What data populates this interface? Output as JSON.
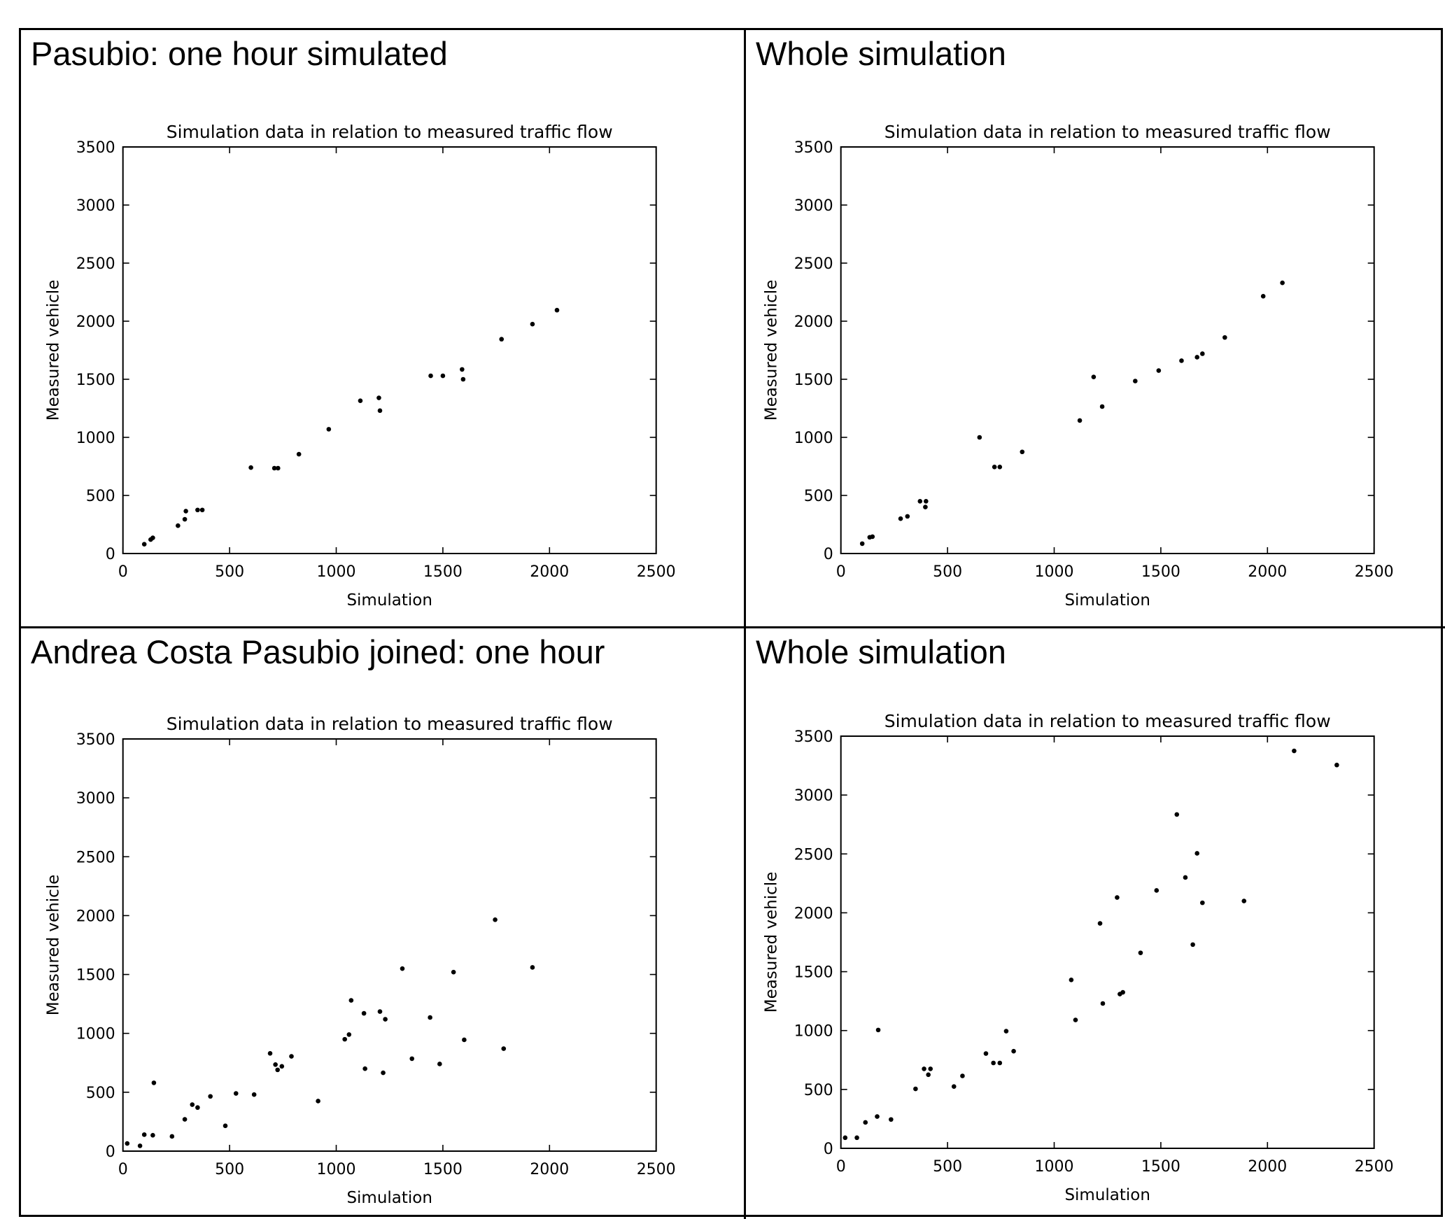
{
  "panels": [
    {
      "heading": "Pasubio: one hour simulated",
      "chart_index": 0
    },
    {
      "heading": "Whole simulation",
      "chart_index": 1
    },
    {
      "heading": "Andrea Costa Pasubio joined: one hour",
      "chart_index": 2
    },
    {
      "heading": "Whole simulation",
      "chart_index": 3
    }
  ],
  "chart_data": [
    {
      "type": "scatter",
      "title": "Simulation data in relation to measured traffic flow",
      "xlabel": "Simulation",
      "ylabel": "Measured vehicle",
      "xlim": [
        0,
        2500
      ],
      "ylim": [
        0,
        3500
      ],
      "xticks": [
        0,
        500,
        1000,
        1500,
        2000,
        2500
      ],
      "yticks": [
        0,
        500,
        1000,
        1500,
        2000,
        2500,
        3000,
        3500
      ],
      "grid": false,
      "marker_color": "#000000",
      "points": [
        [
          100,
          80
        ],
        [
          130,
          120
        ],
        [
          140,
          135
        ],
        [
          258,
          240
        ],
        [
          290,
          295
        ],
        [
          295,
          365
        ],
        [
          350,
          375
        ],
        [
          372,
          375
        ],
        [
          600,
          740
        ],
        [
          710,
          735
        ],
        [
          727,
          735
        ],
        [
          825,
          855
        ],
        [
          965,
          1070
        ],
        [
          1113,
          1315
        ],
        [
          1200,
          1340
        ],
        [
          1205,
          1230
        ],
        [
          1443,
          1530
        ],
        [
          1500,
          1530
        ],
        [
          1590,
          1585
        ],
        [
          1595,
          1500
        ],
        [
          1775,
          1845
        ],
        [
          1920,
          1975
        ],
        [
          2035,
          2095
        ]
      ]
    },
    {
      "type": "scatter",
      "title": "Simulation data in relation to measured traffic flow",
      "xlabel": "Simulation",
      "ylabel": "Measured vehicle",
      "xlim": [
        0,
        2500
      ],
      "ylim": [
        0,
        3500
      ],
      "xticks": [
        0,
        500,
        1000,
        1500,
        2000,
        2500
      ],
      "yticks": [
        0,
        500,
        1000,
        1500,
        2000,
        2500,
        3000,
        3500
      ],
      "grid": false,
      "marker_color": "#000000",
      "points": [
        [
          100,
          85
        ],
        [
          135,
          140
        ],
        [
          148,
          145
        ],
        [
          280,
          300
        ],
        [
          312,
          320
        ],
        [
          371,
          450
        ],
        [
          396,
          400
        ],
        [
          399,
          450
        ],
        [
          650,
          1000
        ],
        [
          720,
          745
        ],
        [
          745,
          745
        ],
        [
          850,
          875
        ],
        [
          1120,
          1145
        ],
        [
          1185,
          1520
        ],
        [
          1225,
          1265
        ],
        [
          1380,
          1485
        ],
        [
          1490,
          1575
        ],
        [
          1597,
          1660
        ],
        [
          1670,
          1690
        ],
        [
          1695,
          1720
        ],
        [
          1800,
          1860
        ],
        [
          1980,
          2215
        ],
        [
          2070,
          2330
        ]
      ]
    },
    {
      "type": "scatter",
      "title": "Simulation data in relation to measured traffic flow",
      "xlabel": "Simulation",
      "ylabel": "Measured vehicle",
      "xlim": [
        0,
        2500
      ],
      "ylim": [
        0,
        3500
      ],
      "xticks": [
        0,
        500,
        1000,
        1500,
        2000,
        2500
      ],
      "yticks": [
        0,
        500,
        1000,
        1500,
        2000,
        2500,
        3000,
        3500
      ],
      "grid": false,
      "marker_color": "#000000",
      "points": [
        [
          20,
          65
        ],
        [
          80,
          45
        ],
        [
          100,
          140
        ],
        [
          140,
          135
        ],
        [
          145,
          580
        ],
        [
          230,
          125
        ],
        [
          290,
          270
        ],
        [
          325,
          395
        ],
        [
          350,
          370
        ],
        [
          410,
          465
        ],
        [
          480,
          215
        ],
        [
          530,
          490
        ],
        [
          615,
          480
        ],
        [
          690,
          830
        ],
        [
          715,
          735
        ],
        [
          725,
          690
        ],
        [
          745,
          720
        ],
        [
          790,
          805
        ],
        [
          915,
          425
        ],
        [
          1040,
          950
        ],
        [
          1060,
          990
        ],
        [
          1070,
          1280
        ],
        [
          1130,
          1170
        ],
        [
          1135,
          700
        ],
        [
          1205,
          1185
        ],
        [
          1220,
          665
        ],
        [
          1230,
          1120
        ],
        [
          1310,
          1550
        ],
        [
          1355,
          785
        ],
        [
          1440,
          1135
        ],
        [
          1485,
          740
        ],
        [
          1550,
          1520
        ],
        [
          1600,
          945
        ],
        [
          1745,
          1965
        ],
        [
          1785,
          870
        ],
        [
          1920,
          1560
        ]
      ]
    },
    {
      "type": "scatter",
      "title": "Simulation data in relation to measured traffic flow",
      "xlabel": "Simulation",
      "ylabel": "Measured vehicle",
      "xlim": [
        0,
        2500
      ],
      "ylim": [
        0,
        3500
      ],
      "xticks": [
        0,
        500,
        1000,
        1500,
        2000,
        2500
      ],
      "yticks": [
        0,
        500,
        1000,
        1500,
        2000,
        2500,
        3000,
        3500
      ],
      "grid": false,
      "marker_color": "#000000",
      "points": [
        [
          20,
          90
        ],
        [
          75,
          90
        ],
        [
          115,
          220
        ],
        [
          170,
          270
        ],
        [
          175,
          1005
        ],
        [
          235,
          245
        ],
        [
          350,
          505
        ],
        [
          390,
          675
        ],
        [
          410,
          625
        ],
        [
          420,
          675
        ],
        [
          530,
          525
        ],
        [
          570,
          615
        ],
        [
          680,
          805
        ],
        [
          715,
          725
        ],
        [
          745,
          725
        ],
        [
          775,
          995
        ],
        [
          810,
          825
        ],
        [
          1080,
          1430
        ],
        [
          1100,
          1090
        ],
        [
          1215,
          1910
        ],
        [
          1228,
          1230
        ],
        [
          1295,
          2130
        ],
        [
          1308,
          1310
        ],
        [
          1322,
          1325
        ],
        [
          1405,
          1660
        ],
        [
          1480,
          2190
        ],
        [
          1575,
          2835
        ],
        [
          1615,
          2300
        ],
        [
          1650,
          1730
        ],
        [
          1670,
          2505
        ],
        [
          1695,
          2085
        ],
        [
          1890,
          2100
        ],
        [
          2125,
          3375
        ],
        [
          2325,
          3255
        ]
      ]
    }
  ]
}
